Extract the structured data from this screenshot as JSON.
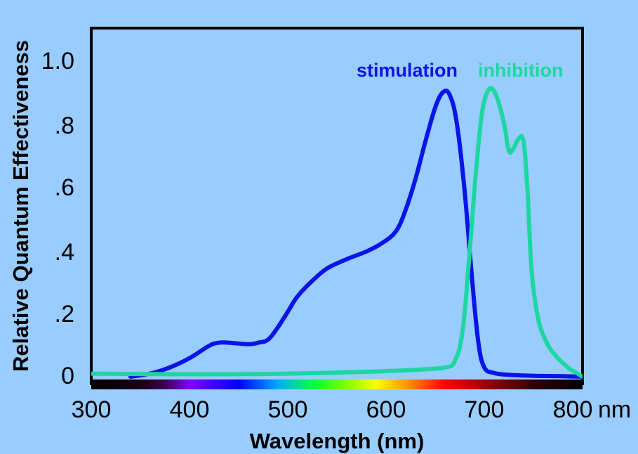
{
  "chart_data": {
    "type": "line",
    "xlabel": "Wavelength (nm)",
    "ylabel": "Relative Quantum Effectiveness",
    "xlim": [
      300,
      800
    ],
    "ylim": [
      0,
      1.1
    ],
    "x_ticks": [
      {
        "value": 300,
        "label": "300"
      },
      {
        "value": 400,
        "label": "400"
      },
      {
        "value": 500,
        "label": "500"
      },
      {
        "value": 600,
        "label": "600"
      },
      {
        "value": 700,
        "label": "700"
      },
      {
        "value": 800,
        "label": "800"
      }
    ],
    "x_unit": "nm",
    "y_ticks": [
      {
        "value": 0,
        "label": "0"
      },
      {
        "value": 0.2,
        "label": ".2"
      },
      {
        "value": 0.4,
        "label": ".4"
      },
      {
        "value": 0.6,
        "label": ".6"
      },
      {
        "value": 0.8,
        "label": ".8"
      },
      {
        "value": 1.0,
        "label": "1.0"
      }
    ],
    "grid": false,
    "legend_position": "top-right",
    "background_color": "#99ccff",
    "spectrum_bar": true,
    "series": [
      {
        "name": "stimulation",
        "color": "#0a14e6",
        "points": [
          [
            340,
            0.0
          ],
          [
            360,
            0.01
          ],
          [
            380,
            0.03
          ],
          [
            400,
            0.06
          ],
          [
            420,
            0.1
          ],
          [
            430,
            0.11
          ],
          [
            440,
            0.11
          ],
          [
            460,
            0.105
          ],
          [
            470,
            0.11
          ],
          [
            480,
            0.12
          ],
          [
            490,
            0.16
          ],
          [
            500,
            0.21
          ],
          [
            510,
            0.26
          ],
          [
            525,
            0.31
          ],
          [
            540,
            0.35
          ],
          [
            560,
            0.38
          ],
          [
            580,
            0.405
          ],
          [
            595,
            0.43
          ],
          [
            610,
            0.47
          ],
          [
            620,
            0.54
          ],
          [
            630,
            0.64
          ],
          [
            640,
            0.76
          ],
          [
            650,
            0.87
          ],
          [
            658,
            0.92
          ],
          [
            665,
            0.91
          ],
          [
            672,
            0.82
          ],
          [
            680,
            0.6
          ],
          [
            688,
            0.3
          ],
          [
            694,
            0.11
          ],
          [
            700,
            0.03
          ],
          [
            710,
            0.012
          ],
          [
            725,
            0.006
          ],
          [
            750,
            0.003
          ],
          [
            775,
            0.002
          ],
          [
            800,
            0.0
          ]
        ]
      },
      {
        "name": "inhibition",
        "color": "#1ed7a0",
        "points": [
          [
            300,
            0.01
          ],
          [
            400,
            0.008
          ],
          [
            500,
            0.01
          ],
          [
            600,
            0.018
          ],
          [
            640,
            0.024
          ],
          [
            660,
            0.03
          ],
          [
            670,
            0.05
          ],
          [
            678,
            0.15
          ],
          [
            685,
            0.4
          ],
          [
            692,
            0.68
          ],
          [
            698,
            0.86
          ],
          [
            705,
            0.93
          ],
          [
            712,
            0.91
          ],
          [
            720,
            0.82
          ],
          [
            725,
            0.73
          ],
          [
            730,
            0.74
          ],
          [
            735,
            0.77
          ],
          [
            740,
            0.76
          ],
          [
            744,
            0.6
          ],
          [
            748,
            0.35
          ],
          [
            754,
            0.2
          ],
          [
            762,
            0.12
          ],
          [
            772,
            0.07
          ],
          [
            785,
            0.03
          ],
          [
            795,
            0.01
          ],
          [
            800,
            0.0
          ]
        ]
      }
    ]
  }
}
